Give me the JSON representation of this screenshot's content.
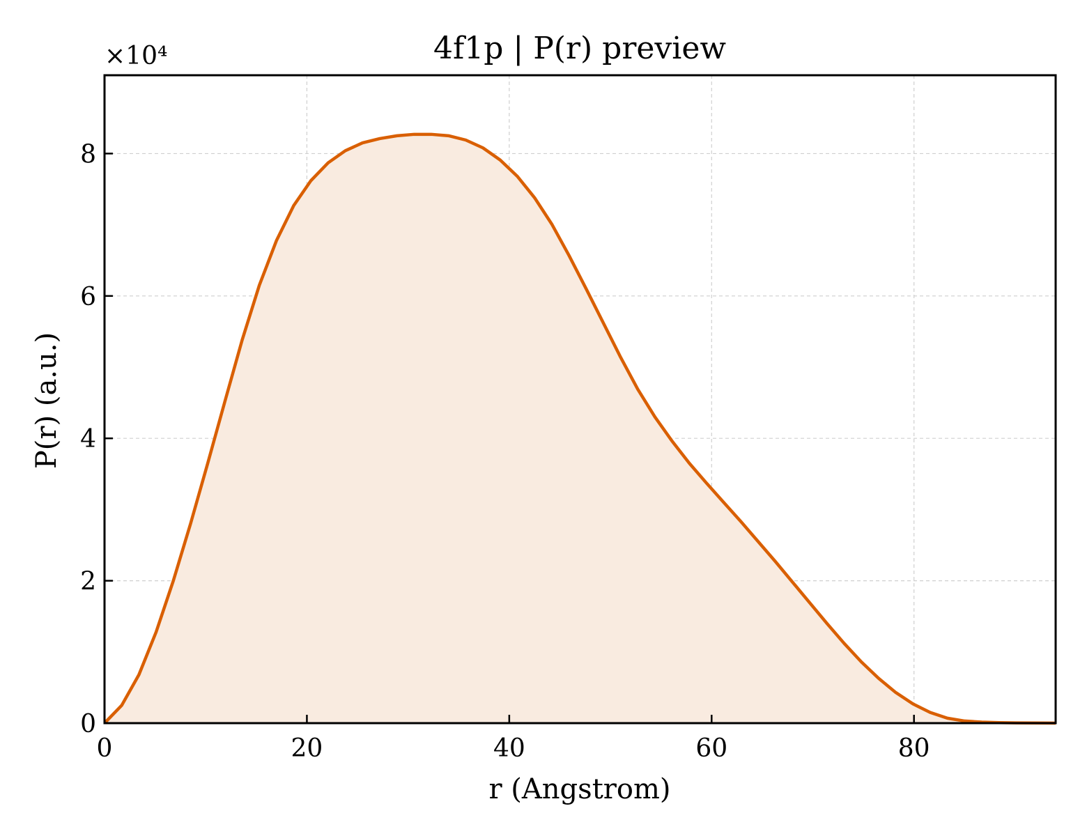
{
  "chart_data": {
    "type": "area",
    "title": "4f1p | P(r) preview",
    "xlabel": "r (Angstrom)",
    "ylabel": "P(r) (a.u.)",
    "y_multiplier_label": "×10⁴",
    "xlim": [
      0,
      94
    ],
    "ylim": [
      0,
      9.1
    ],
    "y_scale_factor": 10000,
    "x_ticks": [
      0,
      20,
      40,
      60,
      80
    ],
    "y_ticks": [
      0,
      2,
      4,
      6,
      8
    ],
    "grid": true,
    "line_color": "#d95f02",
    "fill_color": "#f9ebe0",
    "series": [
      {
        "x": [
          0,
          1.7,
          3.4,
          5.1,
          6.8,
          8.5,
          10.2,
          11.9,
          13.6,
          15.3,
          17.0,
          18.7,
          20.4,
          22.1,
          23.8,
          25.5,
          27.2,
          28.9,
          30.6,
          32.3,
          34.0,
          35.7,
          37.4,
          39.1,
          40.8,
          42.5,
          44.2,
          45.9,
          47.6,
          49.3,
          51.0,
          52.7,
          54.4,
          56.1,
          57.8,
          59.5,
          61.2,
          62.9,
          64.6,
          66.3,
          68.0,
          69.7,
          71.4,
          73.1,
          74.8,
          76.5,
          78.2,
          79.9,
          81.6,
          83.3,
          85.0,
          86.7,
          88.4,
          90.1,
          91.8,
          93.5,
          94
        ],
        "y": [
          0,
          0.25,
          0.68,
          1.28,
          2.0,
          2.8,
          3.65,
          4.52,
          5.38,
          6.15,
          6.78,
          7.27,
          7.62,
          7.87,
          8.04,
          8.15,
          8.21,
          8.25,
          8.27,
          8.27,
          8.25,
          8.19,
          8.08,
          7.91,
          7.68,
          7.38,
          7.01,
          6.57,
          6.1,
          5.62,
          5.14,
          4.69,
          4.3,
          3.96,
          3.65,
          3.37,
          3.1,
          2.83,
          2.55,
          2.27,
          1.98,
          1.69,
          1.4,
          1.12,
          0.86,
          0.63,
          0.43,
          0.27,
          0.15,
          0.07,
          0.03,
          0.015,
          0.007,
          0.004,
          0.002,
          0.0008,
          0.0005
        ]
      }
    ]
  }
}
